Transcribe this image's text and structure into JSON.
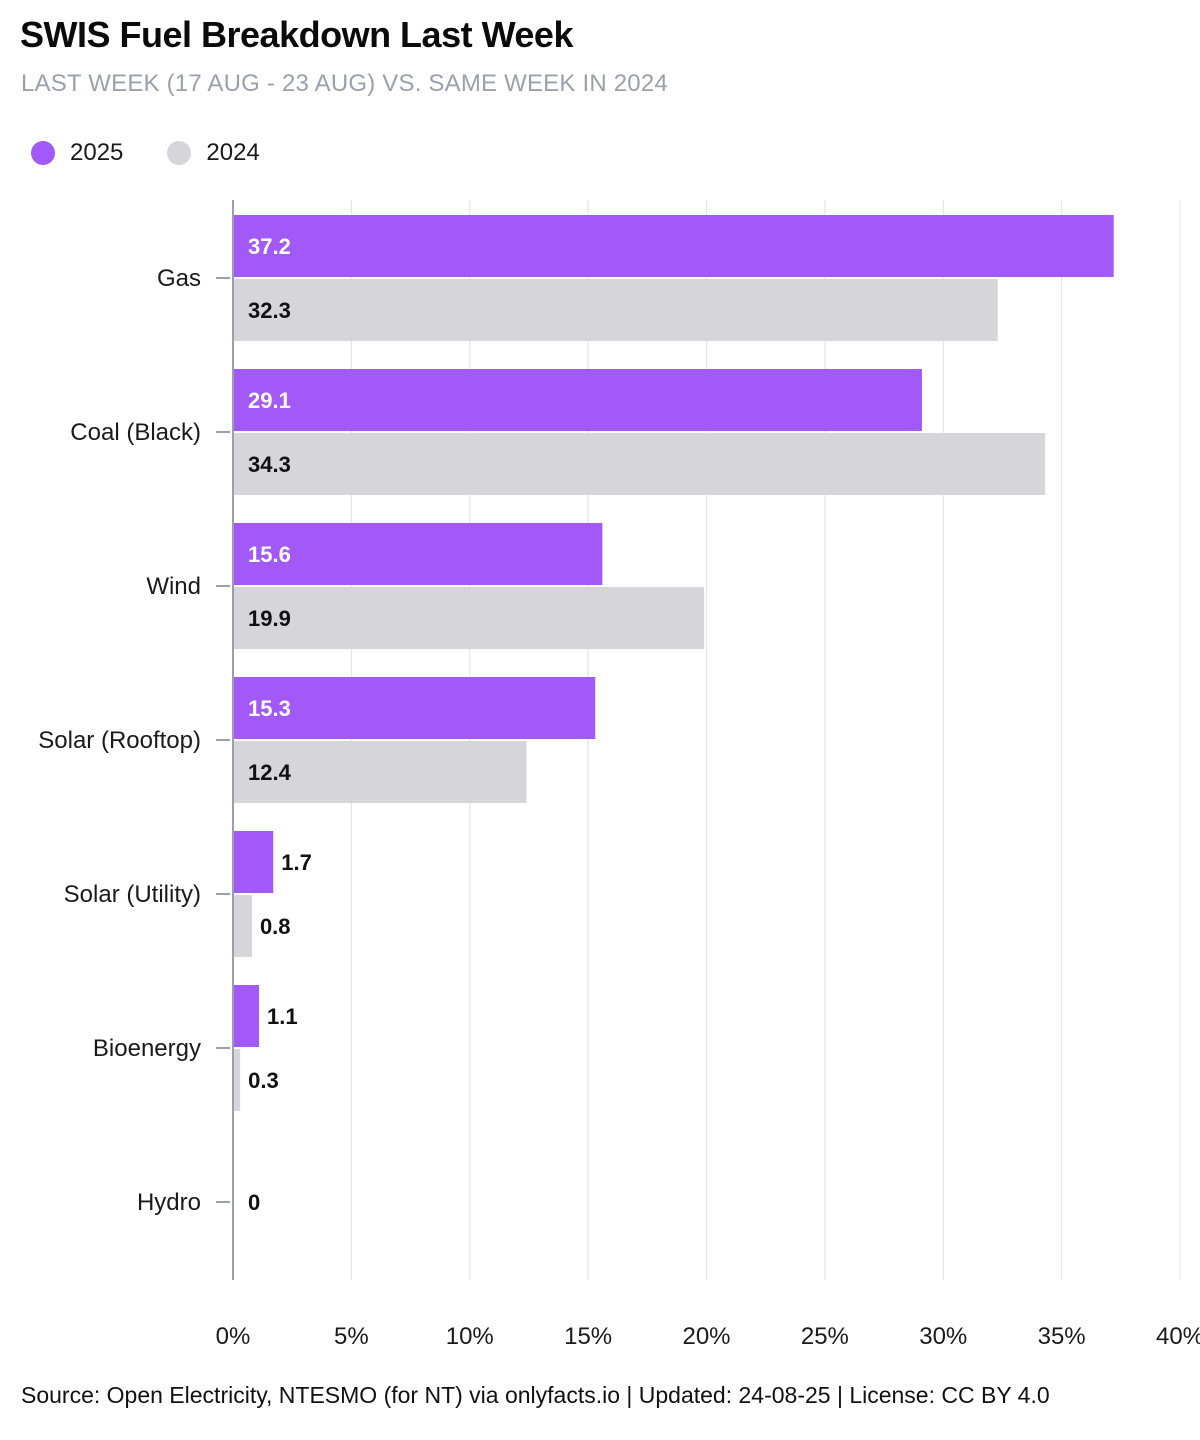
{
  "header": {
    "title": "SWIS Fuel Breakdown Last Week",
    "subtitle": "LAST WEEK (17 AUG - 23 AUG) VS. SAME WEEK IN 2024"
  },
  "legend": [
    {
      "label": "2025",
      "color": "#a259f7"
    },
    {
      "label": "2024",
      "color": "#d5d5da"
    }
  ],
  "chart_data": {
    "type": "bar",
    "orientation": "horizontal",
    "categories": [
      "Gas",
      "Coal (Black)",
      "Wind",
      "Solar (Rooftop)",
      "Solar (Utility)",
      "Bioenergy",
      "Hydro"
    ],
    "series": [
      {
        "name": "2025",
        "color": "#a259f7",
        "values": [
          37.2,
          29.1,
          15.6,
          15.3,
          1.7,
          1.1,
          0
        ],
        "value_labels": [
          "37.2",
          "29.1",
          "15.6",
          "15.3",
          "1.7",
          "1.1",
          "0"
        ]
      },
      {
        "name": "2024",
        "color": "#d5d5da",
        "values": [
          32.3,
          34.3,
          19.9,
          12.4,
          0.8,
          0.3,
          0
        ],
        "value_labels": [
          "32.3",
          "34.3",
          "19.9",
          "12.4",
          "0.8",
          "0.3",
          "0"
        ]
      }
    ],
    "xlim": [
      0,
      40
    ],
    "xticks": [
      0,
      5,
      10,
      15,
      20,
      25,
      30,
      35,
      40
    ],
    "xtick_labels": [
      "0%",
      "5%",
      "10%",
      "15%",
      "20%",
      "25%",
      "30%",
      "35%",
      "40%"
    ],
    "grid": true,
    "legend_position": "top-left"
  },
  "footer": {
    "source": "Source: Open Electricity, NTESMO (for NT) via onlyfacts.io | Updated: 24-08-25 | License: CC BY 4.0"
  }
}
